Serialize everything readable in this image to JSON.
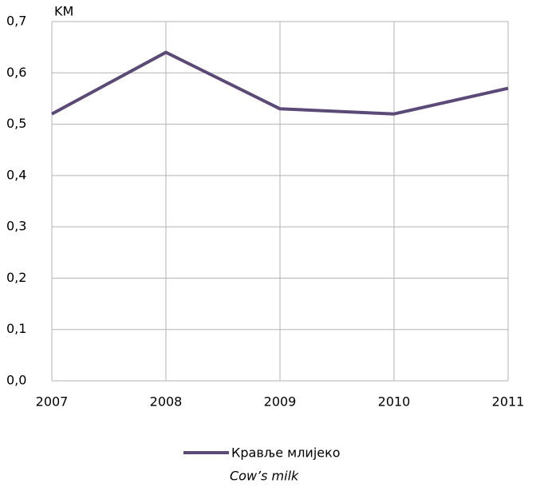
{
  "chart_data": {
    "type": "line",
    "y_unit": "KM",
    "x": [
      2007,
      2008,
      2009,
      2010,
      2011
    ],
    "xlim": [
      2007,
      2011
    ],
    "xticks": [
      2007,
      2008,
      2009,
      2010,
      2011
    ],
    "ylim": [
      0,
      0.7
    ],
    "yticks": [
      {
        "value": 0,
        "label": "0,0"
      },
      {
        "value": 0.1,
        "label": "0,1"
      },
      {
        "value": 0.2,
        "label": "0,2"
      },
      {
        "value": 0.3,
        "label": "0,3"
      },
      {
        "value": 0.4,
        "label": "0,4"
      },
      {
        "value": 0.5,
        "label": "0,5"
      },
      {
        "value": 0.6,
        "label": "0,6"
      },
      {
        "value": 0.7,
        "label": "0,7"
      }
    ],
    "grid": true,
    "legend": "bottom",
    "series": [
      {
        "name": "Кравље млијеко",
        "name_en": "Cow’s milk",
        "color": "#5b4a78",
        "values": [
          0.52,
          0.64,
          0.53,
          0.52,
          0.57
        ]
      }
    ]
  }
}
